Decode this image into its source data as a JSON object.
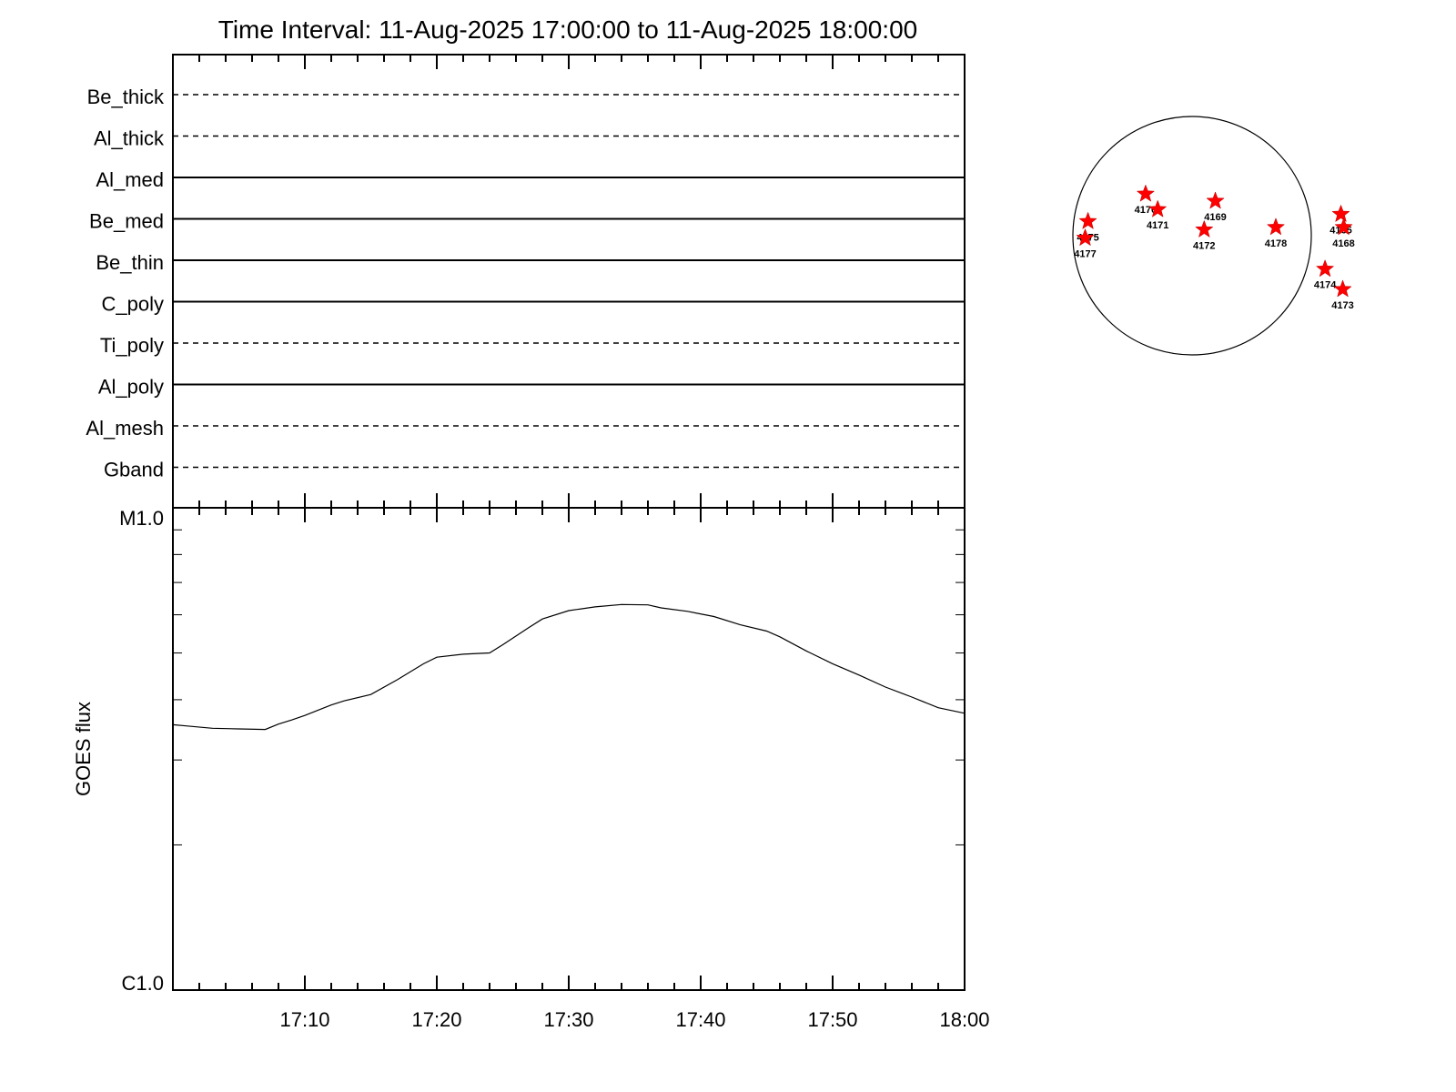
{
  "chart_data": [
    {
      "type": "line",
      "title": "Time Interval: 11-Aug-2025 17:00:00 to 11-Aug-2025 18:00:00",
      "panel": "filter-states",
      "filters": [
        {
          "name": "Be_thick",
          "style": "dashed"
        },
        {
          "name": "Al_thick",
          "style": "dashed"
        },
        {
          "name": "Al_med",
          "style": "solid"
        },
        {
          "name": "Be_med",
          "style": "solid"
        },
        {
          "name": "Be_thin",
          "style": "solid"
        },
        {
          "name": "C_poly",
          "style": "solid"
        },
        {
          "name": "Ti_poly",
          "style": "dashed"
        },
        {
          "name": "Al_poly",
          "style": "solid"
        },
        {
          "name": "Al_mesh",
          "style": "dashed"
        },
        {
          "name": "Gband",
          "style": "dashed"
        }
      ]
    },
    {
      "type": "line",
      "panel": "goes-flux",
      "ylabel": "GOES flux",
      "yscale": "log",
      "ylim": [
        1e-06,
        1e-05
      ],
      "ytick_labels": [
        "M1.0",
        "C1.0"
      ],
      "xlim_minutes": [
        0,
        60
      ],
      "xtick_labels": [
        "17:10",
        "17:20",
        "17:30",
        "17:40",
        "17:50",
        "18:00"
      ],
      "xtick_minutes": [
        10,
        20,
        30,
        40,
        50,
        60
      ],
      "grid": false,
      "series": [
        {
          "x_minutes": [
            0,
            1,
            3,
            5,
            7,
            8,
            9,
            10,
            12,
            13,
            15,
            17,
            19,
            20,
            22,
            24,
            25,
            27,
            28,
            30,
            32,
            34,
            36,
            37,
            39,
            41,
            43,
            45,
            46,
            48,
            50,
            52,
            54,
            56,
            58,
            60
          ],
          "y": [
            3.55e-06,
            3.53e-06,
            3.49e-06,
            3.48e-06,
            3.47e-06,
            3.56e-06,
            3.63e-06,
            3.71e-06,
            3.9e-06,
            3.98e-06,
            4.1e-06,
            4.4e-06,
            4.75e-06,
            4.9e-06,
            4.97e-06,
            5e-06,
            5.2e-06,
            5.65e-06,
            5.88e-06,
            6.12e-06,
            6.23e-06,
            6.3e-06,
            6.29e-06,
            6.2e-06,
            6.1e-06,
            5.95e-06,
            5.72e-06,
            5.55e-06,
            5.4e-06,
            5.05e-06,
            4.75e-06,
            4.5e-06,
            4.25e-06,
            4.05e-06,
            3.85e-06,
            3.75e-06
          ]
        }
      ]
    },
    {
      "type": "scatter",
      "panel": "solar-disk",
      "marker_color": "#ff0000",
      "points": [
        {
          "label": "4176",
          "x": -0.5,
          "y": 0.35
        },
        {
          "label": "4171",
          "x": -0.37,
          "y": 0.22
        },
        {
          "label": "4169",
          "x": 0.25,
          "y": 0.29
        },
        {
          "label": "4175",
          "x": -1.12,
          "y": 0.12
        },
        {
          "label": "4177",
          "x": -1.15,
          "y": -0.02
        },
        {
          "label": "4172",
          "x": 0.13,
          "y": 0.05
        },
        {
          "label": "4178",
          "x": 0.9,
          "y": 0.07
        },
        {
          "label": "4165",
          "x": 1.6,
          "y": 0.18
        },
        {
          "label": "4168",
          "x": 1.63,
          "y": 0.07
        },
        {
          "label": "4174",
          "x": 1.43,
          "y": -0.28
        },
        {
          "label": "4173",
          "x": 1.62,
          "y": -0.45
        }
      ]
    }
  ]
}
